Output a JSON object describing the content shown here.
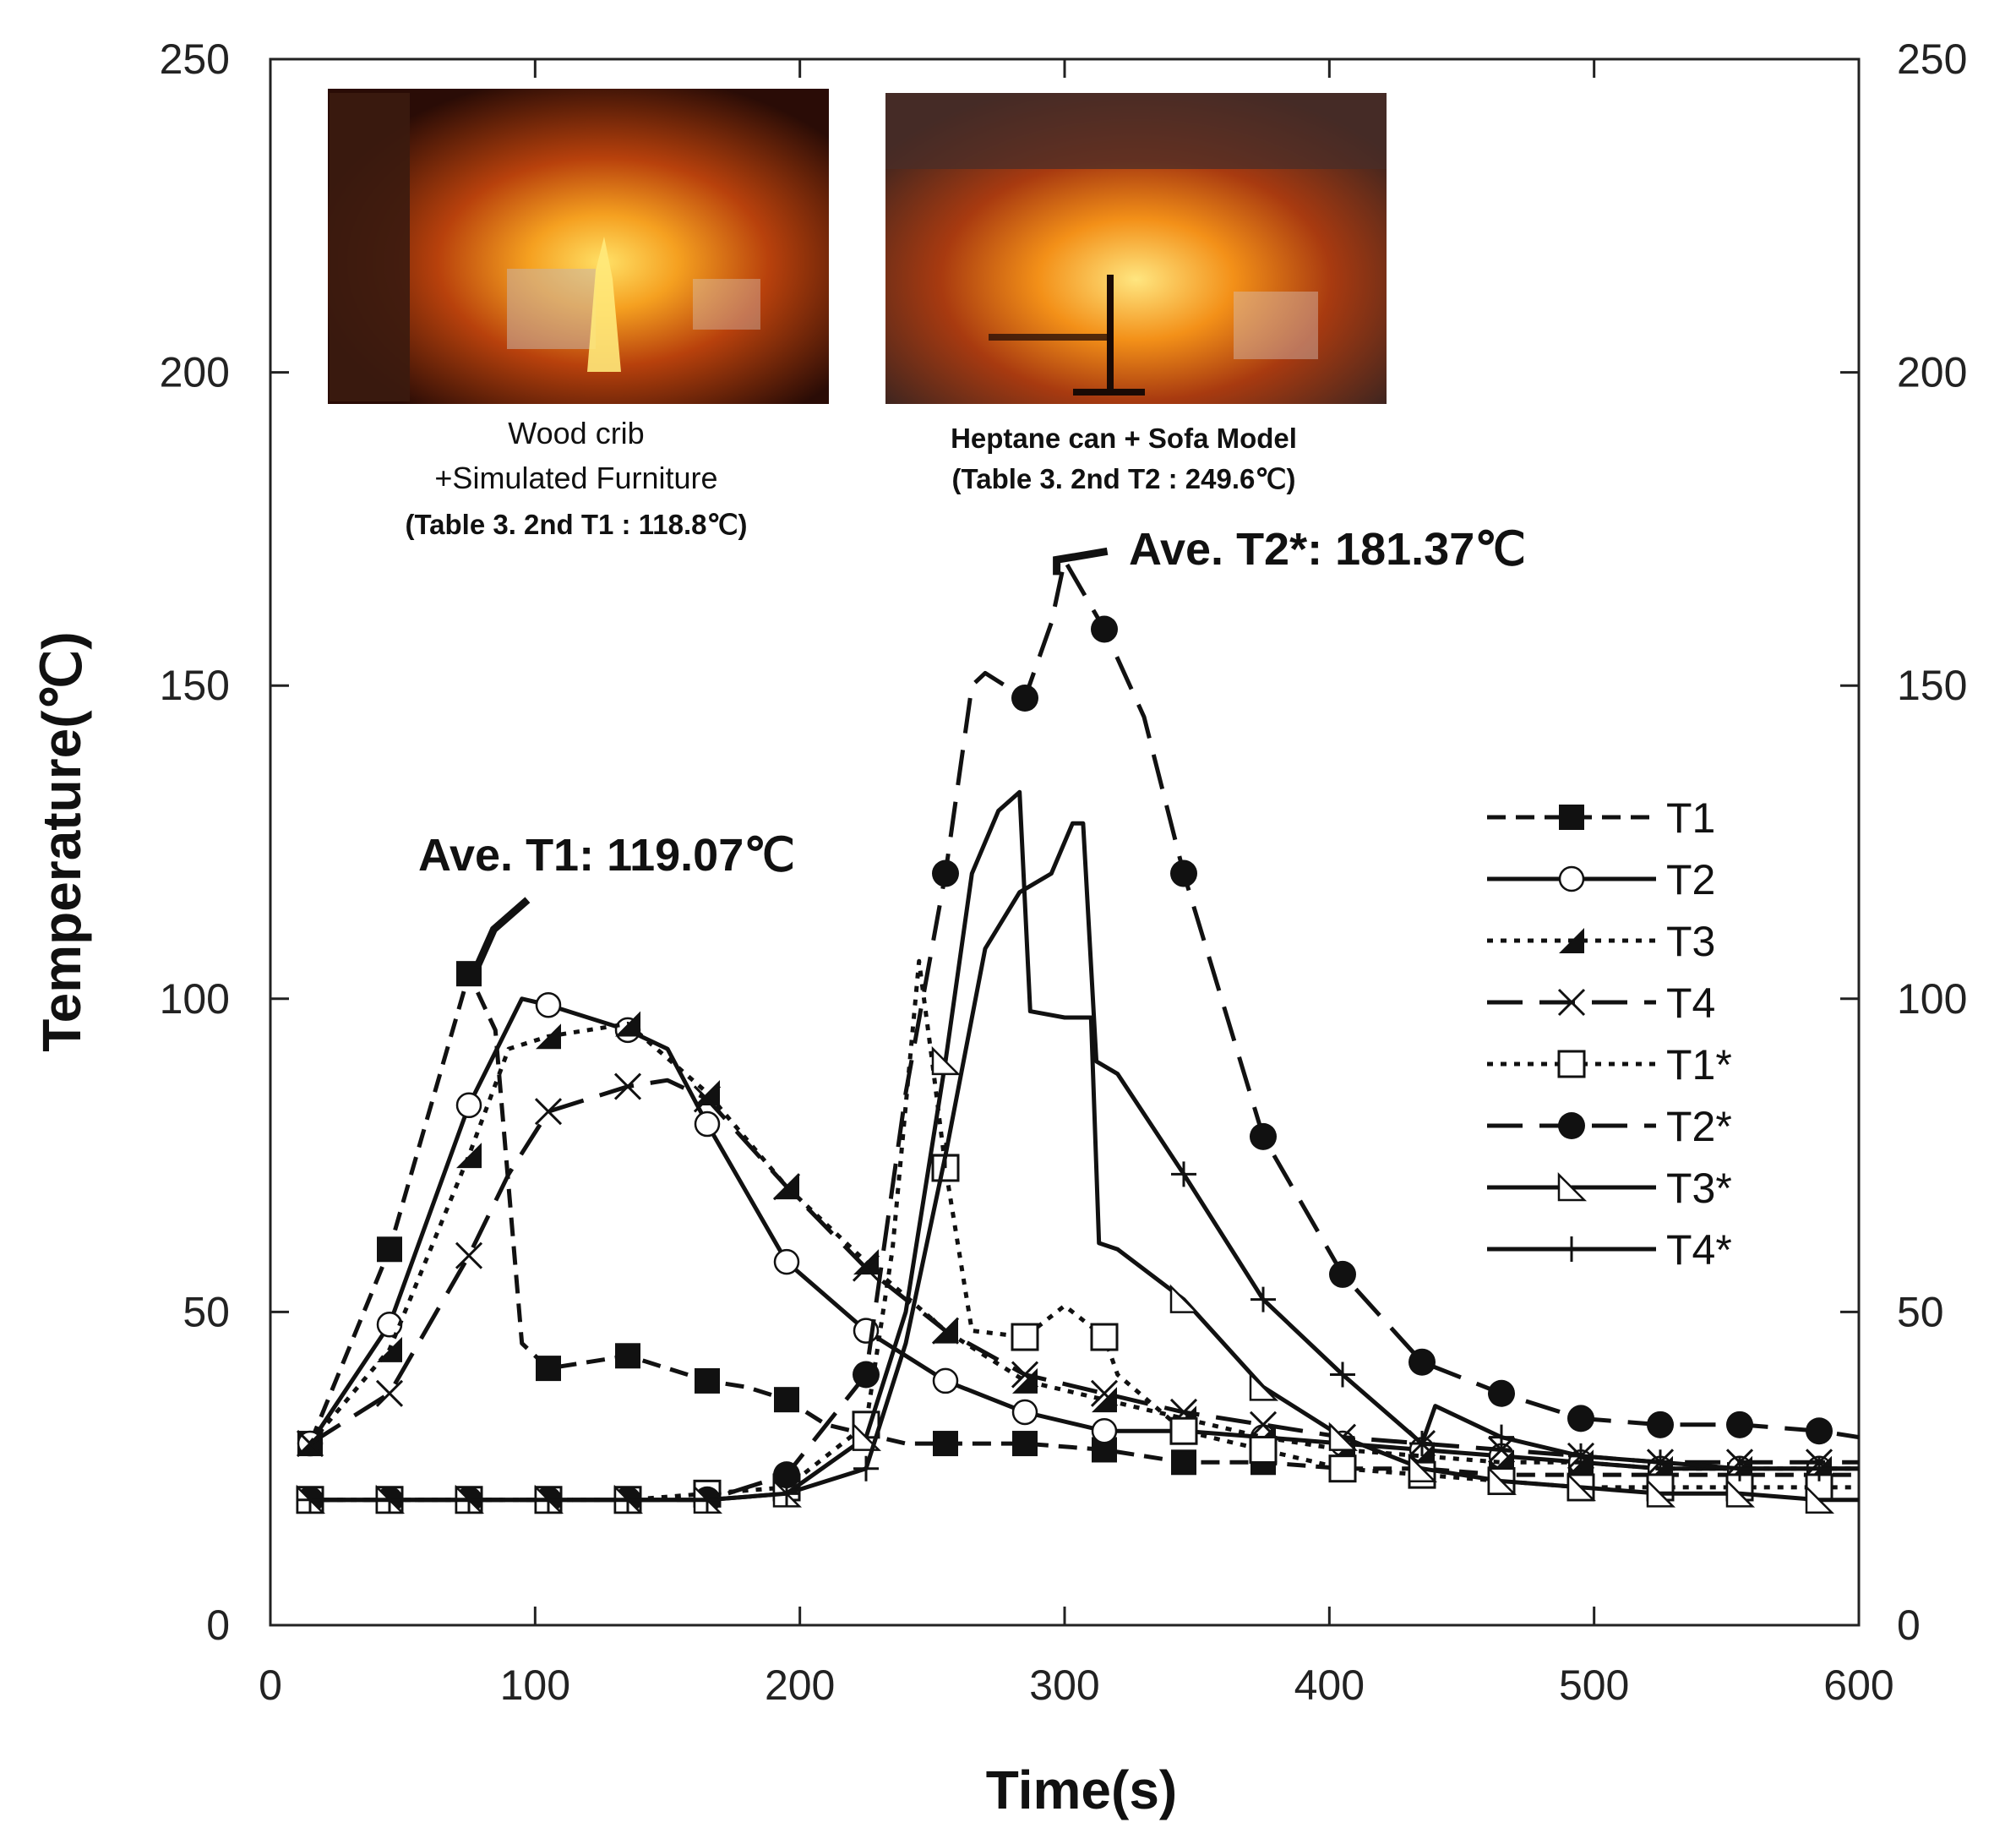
{
  "chart_data": {
    "type": "line",
    "title": "",
    "xlabel": "Time(s)",
    "ylabel": "Temperature(℃)",
    "xlim": [
      0,
      600
    ],
    "ylim": [
      0,
      250
    ],
    "xticks": [
      0,
      100,
      200,
      300,
      400,
      500,
      600
    ],
    "yticks": [
      0,
      50,
      100,
      150,
      200,
      250
    ],
    "grid": false,
    "legend_position": "right",
    "series": [
      {
        "name": "T1",
        "style": "dash",
        "marker": "square-filled",
        "x": [
          15,
          45,
          75,
          85,
          95,
          105,
          120,
          135,
          150,
          165,
          180,
          195,
          210,
          240,
          255,
          285,
          315,
          345,
          375,
          405,
          435,
          465,
          495,
          525,
          555,
          585,
          600
        ],
        "y": [
          29,
          60,
          104,
          95,
          45,
          41,
          42,
          43,
          41,
          39,
          38,
          36,
          32,
          29,
          29,
          29,
          28,
          26,
          26,
          25,
          25,
          24,
          24,
          24,
          24,
          24,
          24
        ]
      },
      {
        "name": "T2",
        "style": "solid",
        "marker": "circle-open",
        "x": [
          15,
          45,
          75,
          95,
          105,
          135,
          150,
          165,
          195,
          225,
          255,
          285,
          315,
          345,
          375,
          405,
          435,
          465,
          495,
          525,
          555,
          585,
          600
        ],
        "y": [
          29,
          48,
          83,
          100,
          99,
          95,
          92,
          80,
          58,
          47,
          39,
          34,
          31,
          31,
          30,
          29,
          28,
          27,
          26,
          25,
          25,
          25,
          25
        ]
      },
      {
        "name": "T3",
        "style": "dot",
        "marker": "triangle-filled",
        "x": [
          15,
          45,
          75,
          90,
          105,
          135,
          165,
          195,
          225,
          255,
          285,
          315,
          345,
          375,
          405,
          435,
          465,
          495,
          525,
          555,
          585,
          600
        ],
        "y": [
          29,
          44,
          75,
          92,
          94,
          96,
          85,
          70,
          58,
          47,
          39,
          36,
          33,
          30,
          28,
          27,
          26,
          26,
          25,
          25,
          25,
          25
        ]
      },
      {
        "name": "T4",
        "style": "longdash",
        "marker": "x",
        "x": [
          15,
          45,
          75,
          90,
          105,
          135,
          150,
          165,
          195,
          225,
          255,
          285,
          315,
          345,
          375,
          405,
          435,
          465,
          495,
          525,
          555,
          585,
          600
        ],
        "y": [
          29,
          37,
          59,
          72,
          82,
          86,
          87,
          84,
          70,
          57,
          47,
          40,
          37,
          34,
          32,
          30,
          29,
          28,
          27,
          26,
          26,
          26,
          26
        ]
      },
      {
        "name": "T1*",
        "style": "dot",
        "marker": "square-open",
        "x": [
          15,
          45,
          75,
          105,
          135,
          165,
          195,
          225,
          235,
          245,
          250,
          255,
          265,
          285,
          300,
          315,
          320,
          345,
          375,
          405,
          435,
          465,
          495,
          525,
          555,
          585,
          600
        ],
        "y": [
          20,
          20,
          20,
          20,
          20,
          21,
          22,
          32,
          60,
          106,
          90,
          73,
          47,
          46,
          51,
          46,
          40,
          31,
          28,
          25,
          24,
          23,
          22,
          22,
          22,
          22,
          22
        ]
      },
      {
        "name": "T2*",
        "style": "longdash",
        "marker": "circle-filled",
        "x": [
          15,
          45,
          75,
          105,
          135,
          165,
          195,
          225,
          240,
          255,
          265,
          270,
          285,
          295,
          300,
          315,
          330,
          345,
          375,
          405,
          435,
          465,
          495,
          525,
          555,
          585,
          600
        ],
        "y": [
          20,
          20,
          20,
          20,
          20,
          20,
          24,
          40,
          85,
          120,
          150,
          152,
          148,
          160,
          170,
          159,
          145,
          120,
          78,
          56,
          42,
          37,
          33,
          32,
          32,
          31,
          30
        ]
      },
      {
        "name": "T3*",
        "style": "solid",
        "marker": "triangle-open",
        "x": [
          15,
          45,
          75,
          105,
          135,
          165,
          195,
          225,
          240,
          255,
          265,
          275,
          283,
          287,
          300,
          310,
          313,
          320,
          345,
          375,
          405,
          435,
          465,
          495,
          525,
          555,
          585,
          600
        ],
        "y": [
          20,
          20,
          20,
          20,
          20,
          20,
          21,
          30,
          50,
          90,
          120,
          130,
          133,
          98,
          97,
          97,
          61,
          60,
          52,
          38,
          30,
          25,
          23,
          22,
          21,
          21,
          20,
          20
        ]
      },
      {
        "name": "T4*",
        "style": "solid",
        "marker": "plus",
        "x": [
          15,
          45,
          75,
          105,
          135,
          165,
          195,
          225,
          240,
          255,
          270,
          283,
          295,
          303,
          307,
          312,
          320,
          345,
          375,
          405,
          435,
          440,
          465,
          495,
          525,
          555,
          585,
          600
        ],
        "y": [
          20,
          20,
          20,
          20,
          20,
          20,
          21,
          25,
          45,
          75,
          108,
          117,
          120,
          128,
          128,
          90,
          88,
          72,
          52,
          40,
          29,
          35,
          30,
          27,
          26,
          25,
          25,
          25
        ]
      }
    ],
    "annotations": [
      {
        "text": "Ave. T1: 119.07℃",
        "x": 78,
        "y": 105
      },
      {
        "text": "Ave. T2*: 181.37℃",
        "x": 297,
        "y": 169
      }
    ]
  },
  "insets": [
    {
      "caption_line1": "Wood crib",
      "caption_line2": "+Simulated Furniture",
      "caption_line3": "(Table 3. 2nd T1 : 118.8℃)"
    },
    {
      "caption_line1": "Heptane can + Sofa Model",
      "caption_line2": "(Table 3. 2nd T2 : 249.6℃)"
    }
  ],
  "colors": {
    "axis": "#222222",
    "series": "#111111",
    "fire_core": "#ffd34d",
    "fire_mid": "#f07a14",
    "fire_dark": "#2a0e08"
  }
}
